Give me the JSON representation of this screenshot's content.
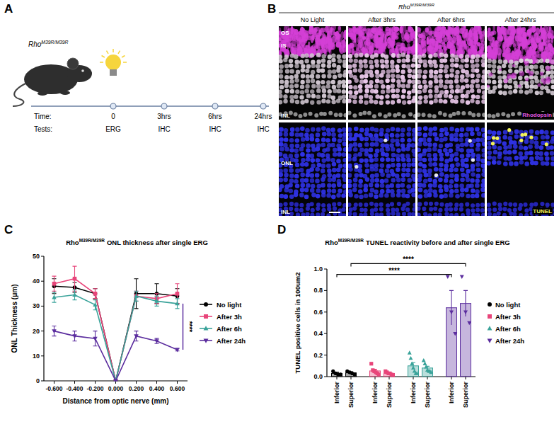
{
  "panel_a": {
    "letter": "A",
    "gene": "Rho",
    "genotype": "M39R/M39R",
    "time_label": "Time:",
    "tests_label": "Tests:",
    "timepoints": [
      "0",
      "3hrs",
      "6hrs",
      "24hrs"
    ],
    "tests": [
      "ERG",
      "IHC",
      "IHC",
      "IHC"
    ]
  },
  "panel_b": {
    "letter": "B",
    "gene": "Rho",
    "genotype": "M39R/M39R",
    "columns": [
      "No Light",
      "After 3hrs",
      "After 6hrs",
      "After 24hrs"
    ],
    "top_labels": [
      "OS",
      "IS",
      "INL"
    ],
    "top_stain": "Rhodopsin",
    "bottom_labels": [
      "ONL",
      "INL"
    ],
    "bottom_stain": "TUNEL"
  },
  "chart_data": [
    {
      "letter": "C",
      "type": "line",
      "title_gene": "Rho",
      "title_genotype": "M39R/M39R",
      "title": "ONL thickness after single ERG",
      "x_label": "Distance from optic nerve (mm)",
      "y_label": "ONL Thickness (μm)",
      "x": [
        -0.6,
        -0.4,
        -0.2,
        0,
        0.2,
        0.4,
        0.6
      ],
      "xlim": [
        -0.7,
        0.7
      ],
      "xticks": [
        {
          "value": -0.6,
          "label": "-0.600"
        },
        {
          "value": -0.4,
          "label": "-0.400"
        },
        {
          "value": -0.2,
          "label": "-0.200"
        },
        {
          "value": 0,
          "label": "0.000"
        },
        {
          "value": 0.2,
          "label": "0.200"
        },
        {
          "value": 0.4,
          "label": "0.400"
        },
        {
          "value": 0.6,
          "label": "0.600"
        }
      ],
      "ylim": [
        0,
        50
      ],
      "yticks": [
        0,
        10,
        20,
        30,
        40,
        50
      ],
      "legend": "right",
      "series": [
        {
          "name": "No light",
          "color": "#000000",
          "marker": "circle",
          "values": [
            38,
            37.5,
            35,
            0,
            35,
            35,
            34
          ],
          "errors": [
            3,
            2,
            2,
            0,
            6,
            4,
            3
          ]
        },
        {
          "name": "After 3h",
          "color": "#e8457a",
          "marker": "square",
          "values": [
            39,
            41,
            35,
            0,
            34,
            33,
            35
          ],
          "errors": [
            3,
            5,
            2,
            0,
            2,
            2,
            4
          ]
        },
        {
          "name": "After 6h",
          "color": "#3aa39a",
          "marker": "triangle-up",
          "values": [
            33.5,
            34.5,
            30.5,
            0,
            34,
            32,
            31
          ],
          "errors": [
            2,
            2,
            2,
            0,
            2,
            2,
            2
          ]
        },
        {
          "name": "After 24h",
          "color": "#5b2d9e",
          "marker": "triangle-down",
          "values": [
            20,
            18,
            17,
            0,
            18,
            16,
            12.5
          ],
          "errors": [
            2,
            2,
            3,
            0,
            2,
            1,
            0.5
          ]
        }
      ],
      "annotations": [
        {
          "text": "****",
          "x": 0.6,
          "y_from": 12.5,
          "y_to": 31
        }
      ]
    },
    {
      "letter": "D",
      "type": "bar",
      "title_gene": "Rho",
      "title_genotype": "M39R/M39R",
      "title": "TUNEL reactivity before and after single ERG",
      "y_label": "TUNEL positive cells in 100um2",
      "categories": [
        "Inferior",
        "Superior",
        "Inferior",
        "Superior",
        "Inferior",
        "Superior",
        "Inferior",
        "Superior"
      ],
      "ylim": [
        0,
        1
      ],
      "yticks": [
        {
          "value": 0,
          "label": "0.0"
        },
        0.2,
        0.4,
        0.6,
        0.8,
        {
          "value": 1,
          "label": "1.0"
        }
      ],
      "legend": "right",
      "series": [
        {
          "name": "No light",
          "color": "#000000",
          "marker": "circle",
          "values": [
            0.03,
            0.035,
            null,
            null,
            null,
            null,
            null,
            null
          ],
          "errors": [
            0.01,
            0.01,
            null,
            null,
            null,
            null,
            null,
            null
          ],
          "points": [
            [
              0.05,
              0.03,
              0.02,
              0.02
            ],
            [
              0.05,
              0.04,
              0.03,
              0.02
            ],
            null,
            null,
            null,
            null,
            null,
            null
          ]
        },
        {
          "name": "After 3h",
          "color": "#e8457a",
          "marker": "square",
          "values": [
            null,
            null,
            0.053,
            0.03,
            null,
            null,
            null,
            null
          ],
          "errors": [
            null,
            null,
            0.015,
            0.006,
            null,
            null,
            null,
            null
          ],
          "points": [
            null,
            null,
            [
              0.12,
              0.06,
              0.05,
              0.04,
              0.03,
              0.02
            ],
            [
              0.05,
              0.04,
              0.03,
              0.03,
              0.02,
              0.01
            ],
            null,
            null,
            null,
            null
          ]
        },
        {
          "name": "After 6h",
          "color": "#3aa39a",
          "marker": "triangle-up",
          "values": [
            null,
            null,
            null,
            null,
            0.1,
            0.08,
            null,
            null
          ],
          "errors": [
            null,
            null,
            null,
            null,
            0.03,
            0.016,
            null,
            null
          ],
          "points": [
            null,
            null,
            null,
            null,
            [
              0.22,
              0.17,
              0.12,
              0.08,
              0.05,
              0.03,
              0.03
            ],
            [
              0.15,
              0.12,
              0.09,
              0.06,
              0.05,
              0.05,
              0.04
            ],
            null,
            null
          ]
        },
        {
          "name": "After 24h",
          "color": "#5b2d9e",
          "marker": "triangle-down",
          "values": [
            null,
            null,
            null,
            null,
            null,
            null,
            0.64,
            0.68
          ],
          "errors": [
            null,
            null,
            null,
            null,
            null,
            null,
            0.16,
            0.12
          ],
          "points": [
            null,
            null,
            null,
            null,
            null,
            null,
            [
              0.93,
              0.6,
              0.4
            ],
            [
              0.93,
              0.6,
              0.5
            ]
          ]
        }
      ],
      "comparisons": [
        {
          "from": 0,
          "to": 6,
          "y": 0.95,
          "text": "****"
        },
        {
          "from": 1,
          "to": 7,
          "y": 1.05,
          "text": "****"
        }
      ]
    }
  ]
}
